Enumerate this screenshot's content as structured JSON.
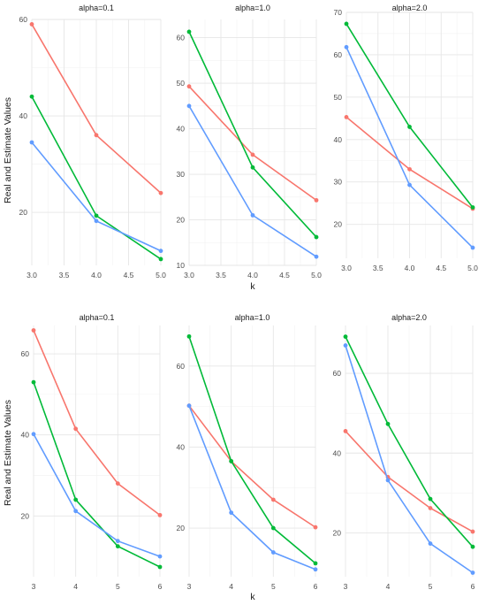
{
  "figure": {
    "ylabel": "Real and Estimate Values",
    "xlabel": "k"
  },
  "colors": {
    "red": "#F8766D",
    "green": "#00BA38",
    "blue": "#619CFF"
  },
  "chart_data": [
    {
      "type": "line",
      "title": "alpha=0.1",
      "x": [
        3,
        4,
        5
      ],
      "xlim": [
        3,
        5
      ],
      "xticks": [
        "3.0",
        "3.5",
        "4.0",
        "4.5",
        "5.0"
      ],
      "xtickvals": [
        3,
        3.5,
        4,
        4.5,
        5
      ],
      "ylim": [
        9,
        60
      ],
      "yticks": [
        "20",
        "40",
        "60"
      ],
      "ytickvals": [
        20,
        40,
        60
      ],
      "series": [
        {
          "color": "red",
          "values": [
            59,
            36,
            24
          ]
        },
        {
          "color": "green",
          "values": [
            44,
            19.3,
            10.3
          ]
        },
        {
          "color": "blue",
          "values": [
            34.5,
            18.2,
            12
          ]
        }
      ]
    },
    {
      "type": "line",
      "title": "alpha=1.0",
      "x": [
        3,
        4,
        5
      ],
      "xlim": [
        3,
        5
      ],
      "xticks": [
        "3.0",
        "3.5",
        "4.0",
        "4.5",
        "5.0"
      ],
      "xtickvals": [
        3,
        3.5,
        4,
        4.5,
        5
      ],
      "ylim": [
        10,
        64
      ],
      "yticks": [
        "10",
        "20",
        "30",
        "40",
        "50",
        "60"
      ],
      "ytickvals": [
        10,
        20,
        30,
        40,
        50,
        60
      ],
      "series": [
        {
          "color": "red",
          "values": [
            49.3,
            34.3,
            24.3
          ]
        },
        {
          "color": "green",
          "values": [
            61.3,
            31.5,
            16.2
          ]
        },
        {
          "color": "blue",
          "values": [
            45,
            21,
            11.9
          ]
        }
      ]
    },
    {
      "type": "line",
      "title": "alpha=2.0",
      "x": [
        3,
        4,
        5
      ],
      "xlim": [
        3,
        5
      ],
      "xticks": [
        "3.0",
        "3.5",
        "4.0",
        "4.5",
        "5.0"
      ],
      "xtickvals": [
        3,
        3.5,
        4,
        4.5,
        5
      ],
      "ylim": [
        12,
        70
      ],
      "yticks": [
        "20",
        "30",
        "40",
        "50",
        "60",
        "70"
      ],
      "ytickvals": [
        20,
        30,
        40,
        50,
        60,
        70
      ],
      "series": [
        {
          "color": "red",
          "values": [
            45.3,
            33,
            23.7
          ]
        },
        {
          "color": "green",
          "values": [
            67.3,
            43,
            24
          ]
        },
        {
          "color": "blue",
          "values": [
            61.8,
            29.3,
            14.5
          ]
        }
      ]
    },
    {
      "type": "line",
      "title": "alpha=0.1",
      "x": [
        3,
        4,
        5,
        6
      ],
      "xlim": [
        3,
        6
      ],
      "xticks": [
        "3",
        "4",
        "5",
        "6"
      ],
      "xtickvals": [
        3,
        4,
        5,
        6
      ],
      "ylim": [
        5,
        67
      ],
      "yticks": [
        "20",
        "40",
        "60"
      ],
      "ytickvals": [
        20,
        40,
        60
      ],
      "series": [
        {
          "color": "red",
          "values": [
            65.8,
            41.5,
            28,
            20.2
          ]
        },
        {
          "color": "green",
          "values": [
            53,
            24,
            12.5,
            7.4
          ]
        },
        {
          "color": "blue",
          "values": [
            40.2,
            21.2,
            13.8,
            10
          ]
        }
      ]
    },
    {
      "type": "line",
      "title": "alpha=1.0",
      "x": [
        3,
        4,
        5,
        6
      ],
      "xlim": [
        3,
        6
      ],
      "xticks": [
        "3",
        "4",
        "5",
        "6"
      ],
      "xtickvals": [
        3,
        4,
        5,
        6
      ],
      "ylim": [
        8,
        70
      ],
      "yticks": [
        "20",
        "40",
        "60"
      ],
      "ytickvals": [
        20,
        40,
        60
      ],
      "series": [
        {
          "color": "red",
          "values": [
            50.2,
            36.5,
            27,
            20.2
          ]
        },
        {
          "color": "green",
          "values": [
            67.3,
            36.5,
            20,
            11.3
          ]
        },
        {
          "color": "blue",
          "values": [
            50.2,
            23.8,
            14,
            9.8
          ]
        }
      ]
    },
    {
      "type": "line",
      "title": "alpha=2.0",
      "x": [
        3,
        4,
        5,
        6
      ],
      "xlim": [
        3,
        6
      ],
      "xticks": [
        "3",
        "4",
        "5",
        "6"
      ],
      "xtickvals": [
        3,
        4,
        5,
        6
      ],
      "ylim": [
        9,
        72
      ],
      "yticks": [
        "20",
        "40",
        "60"
      ],
      "ytickvals": [
        20,
        40,
        60
      ],
      "series": [
        {
          "color": "red",
          "values": [
            45.5,
            34,
            26.2,
            20.3
          ]
        },
        {
          "color": "green",
          "values": [
            69.2,
            47.3,
            28.5,
            16.5
          ]
        },
        {
          "color": "blue",
          "values": [
            67,
            33.2,
            17.3,
            10
          ]
        }
      ]
    }
  ]
}
